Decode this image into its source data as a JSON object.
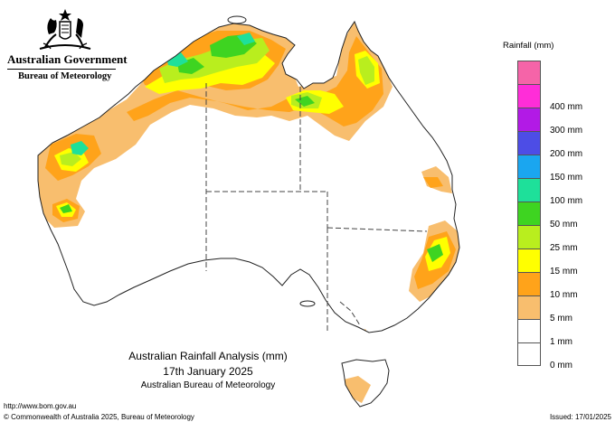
{
  "header": {
    "government": "Australian Government",
    "bureau": "Bureau of Meteorology"
  },
  "caption": {
    "title": "Australian Rainfall Analysis (mm)",
    "date": "17th January 2025",
    "source": "Australian Bureau of Meteorology"
  },
  "legend": {
    "title": "Rainfall (mm)",
    "classes": [
      {
        "label": "",
        "color": "#f564a8"
      },
      {
        "label": "400 mm",
        "color": "#ff2dd8"
      },
      {
        "label": "300 mm",
        "color": "#b21ae6"
      },
      {
        "label": "200 mm",
        "color": "#4d4de6"
      },
      {
        "label": "150 mm",
        "color": "#1aa6f0"
      },
      {
        "label": "100 mm",
        "color": "#1ee09a"
      },
      {
        "label": "50 mm",
        "color": "#3ed421"
      },
      {
        "label": "25 mm",
        "color": "#b9ee1e"
      },
      {
        "label": "15 mm",
        "color": "#ffff00"
      },
      {
        "label": "10 mm",
        "color": "#ffa31a"
      },
      {
        "label": "5 mm",
        "color": "#f8be6e"
      },
      {
        "label": "1 mm",
        "color": "#ffffff"
      },
      {
        "label": "0 mm",
        "color": ""
      }
    ]
  },
  "footer": {
    "url": "http://www.bom.gov.au",
    "copyright": "© Commonwealth of Australia 2025, Bureau of Meteorology",
    "issued": "Issued: 17/01/2025"
  },
  "colors": {
    "r1": "#f8be6e",
    "r5": "#ffa31a",
    "r10": "#ffff00",
    "r15": "#b9ee1e",
    "r25": "#3ed421",
    "r50": "#1ee09a"
  }
}
